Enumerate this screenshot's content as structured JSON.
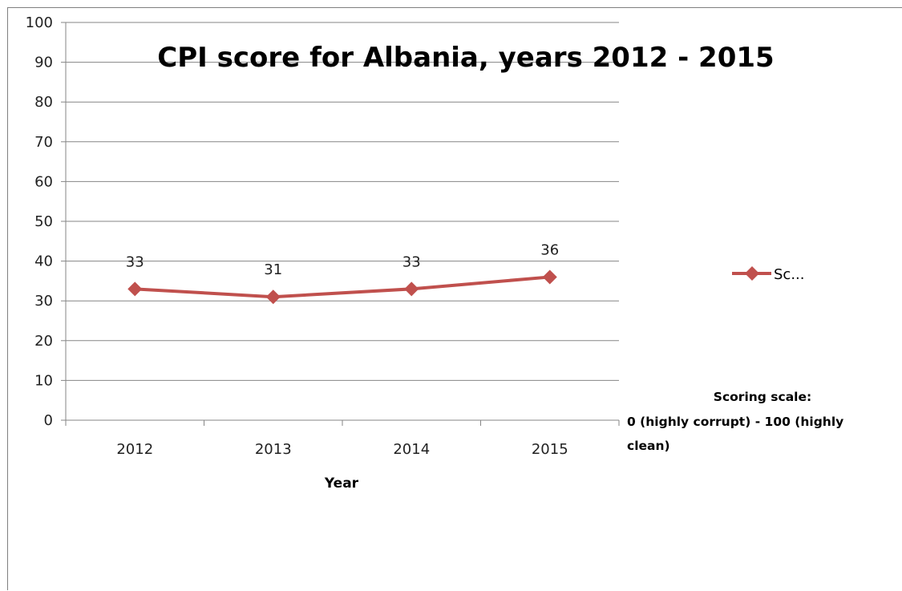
{
  "chart_data": {
    "type": "line",
    "title": "CPI score for Albania, years 2012 - 2015",
    "xlabel": "Year",
    "ylabel": "",
    "categories": [
      "2012",
      "2013",
      "2014",
      "2015"
    ],
    "series": [
      {
        "name": "Sc...",
        "values": [
          33,
          31,
          33,
          36
        ],
        "color": "#c0504d",
        "marker": "diamond"
      }
    ],
    "data_labels": [
      "33",
      "31",
      "33",
      "36"
    ],
    "ylim": [
      0,
      100
    ],
    "y_ticks": [
      "0",
      "10",
      "20",
      "30",
      "40",
      "50",
      "60",
      "70",
      "80",
      "90",
      "100"
    ],
    "grid": true,
    "legend_position": "right",
    "annotation": {
      "line1": "Scoring scale:",
      "line2": "0 (highly corrupt) - 100 (highly",
      "line3": "clean)"
    }
  },
  "colors": {
    "series": "#c0504d",
    "gridline": "#868686",
    "axis": "#868686"
  }
}
